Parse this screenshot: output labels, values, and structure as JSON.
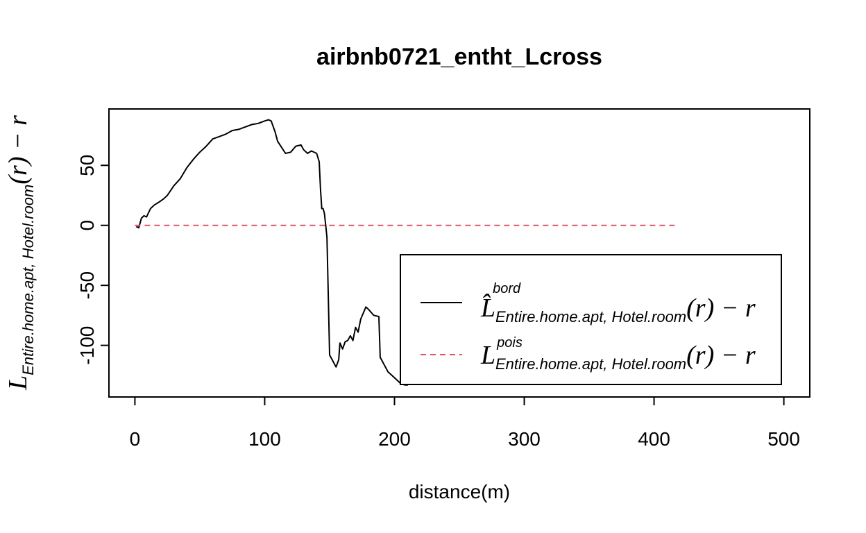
{
  "chart_data": {
    "type": "line",
    "title": "airbnb0721_entht_Lcross",
    "xlabel": "distance(m)",
    "ylabel": {
      "base": "L",
      "subscript": "Entire.home.apt, Hotel.room",
      "suffix": "(r) − r"
    },
    "xlim": [
      -20,
      520
    ],
    "ylim": [
      -143,
      97
    ],
    "x_ticks": [
      0,
      100,
      200,
      300,
      400,
      500
    ],
    "y_ticks": [
      50,
      0,
      -50,
      -100
    ],
    "legend_position": "bottom-right",
    "series": [
      {
        "name": "bord",
        "legend": {
          "base": "L̂",
          "superscript": "bord",
          "subscript": "Entire.home.apt, Hotel.room",
          "suffix": "(r) − r"
        },
        "color": "#000000",
        "linestyle": "solid",
        "x": [
          1,
          3,
          5,
          7,
          9,
          12,
          15,
          18,
          22,
          25,
          30,
          35,
          40,
          45,
          50,
          55,
          60,
          65,
          70,
          75,
          80,
          85,
          90,
          95,
          100,
          103,
          105,
          108,
          110,
          113,
          116,
          120,
          124,
          128,
          130,
          133,
          136,
          140,
          142,
          143,
          144,
          145,
          146,
          147,
          148,
          150,
          152,
          155,
          157,
          158,
          160,
          162,
          164,
          166,
          168,
          170,
          172,
          174,
          176,
          178,
          180,
          184,
          188,
          189,
          195,
          200,
          205,
          208,
          210,
          211,
          212,
          214,
          218,
          220,
          221,
          223,
          225,
          230,
          235,
          240,
          242
        ],
        "y": [
          -1,
          -2,
          6,
          8,
          7,
          14,
          17,
          19,
          22,
          25,
          33,
          39,
          48,
          55,
          61,
          66,
          72,
          74,
          76,
          79,
          80,
          82,
          84,
          85,
          87,
          88,
          87,
          78,
          70,
          65,
          60,
          61,
          66,
          67,
          63,
          60,
          62,
          60,
          53,
          30,
          14,
          14,
          10,
          0,
          -10,
          -108,
          -112,
          -118,
          -112,
          -98,
          -103,
          -97,
          -96,
          -92,
          -96,
          -85,
          -89,
          -78,
          -73,
          -68,
          -70,
          -75,
          -76,
          -110,
          -122,
          -127,
          -132,
          -133,
          -133,
          -102,
          -103,
          -106,
          -103,
          -108,
          -85,
          -87,
          -90,
          -97,
          -100,
          -104,
          -106
        ]
      },
      {
        "name": "pois",
        "legend": {
          "base": "L",
          "superscript": "pois",
          "subscript": "Entire.home.apt, Hotel.room",
          "suffix": "(r) − r"
        },
        "color": "#DF536B",
        "linestyle": "dashed",
        "x": [
          0,
          417
        ],
        "y": [
          0,
          0
        ]
      }
    ]
  }
}
